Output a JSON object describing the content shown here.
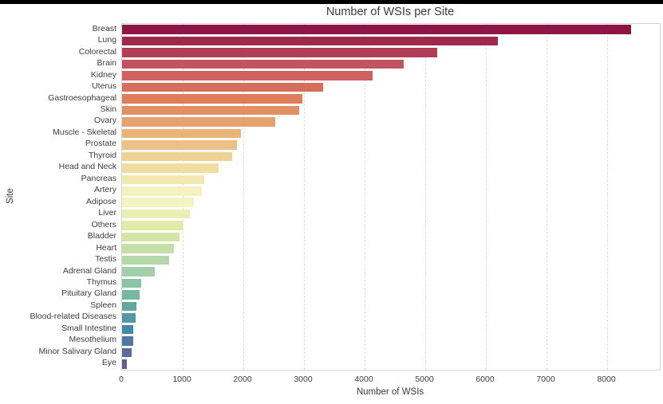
{
  "frame": {
    "top_strip_color": "#000000",
    "background": "#ffffff",
    "plot_border_color": "#d4d4d4",
    "gridline_color": "#dcdcdc",
    "text_color": "#3a3a3a"
  },
  "chart_data": {
    "type": "bar",
    "orientation": "horizontal",
    "title": "Number of WSIs per Site",
    "xlabel": "Number of WSIs",
    "ylabel": "Site",
    "grid": "vertical dashed gridlines",
    "legend": "none",
    "xlim": [
      0,
      8868
    ],
    "xticks": [
      0,
      1000,
      2000,
      3000,
      4000,
      5000,
      6000,
      7000,
      8000
    ],
    "categories": [
      "Breast",
      "Lung",
      "Colorectal",
      "Brain",
      "Kidney",
      "Uterus",
      "Gastroesophageal",
      "Skin",
      "Ovary",
      "Muscle - Skeletal",
      "Prostate",
      "Thyroid",
      "Head and Neck",
      "Pancreas",
      "Artery",
      "Adipose",
      "Liver",
      "Others",
      "Bladder",
      "Heart",
      "Testis",
      "Adrenal Gland",
      "Thymus",
      "Pituitary Gland",
      "Spleen",
      "Blood-related Diseases",
      "Small Intestine",
      "Mesothelium",
      "Minor Salivary Gland",
      "Eye"
    ],
    "values": [
      8400,
      6200,
      5200,
      4650,
      4130,
      3320,
      2970,
      2920,
      2520,
      1960,
      1900,
      1810,
      1590,
      1360,
      1320,
      1190,
      1120,
      1000,
      950,
      860,
      770,
      540,
      320,
      290,
      240,
      230,
      190,
      180,
      160,
      80
    ],
    "bar_colors": [
      "#8e1647",
      "#9e294d",
      "#b13e56",
      "#c3535e",
      "#ce615d",
      "#d66e5b",
      "#df7d5b",
      "#e38f64",
      "#e7a16e",
      "#eab378",
      "#ecc185",
      "#efd192",
      "#f1dda0",
      "#f3e8af",
      "#f6f2bf",
      "#f3f4c1",
      "#eaf0b5",
      "#e1eba8",
      "#d5e5a5",
      "#c5dfa8",
      "#b5d8ab",
      "#a2cfa9",
      "#8cc4a6",
      "#76b9a2",
      "#63a7a2",
      "#5496a6",
      "#4586ab",
      "#4f77a6",
      "#5b6aa0",
      "#655998"
    ]
  }
}
